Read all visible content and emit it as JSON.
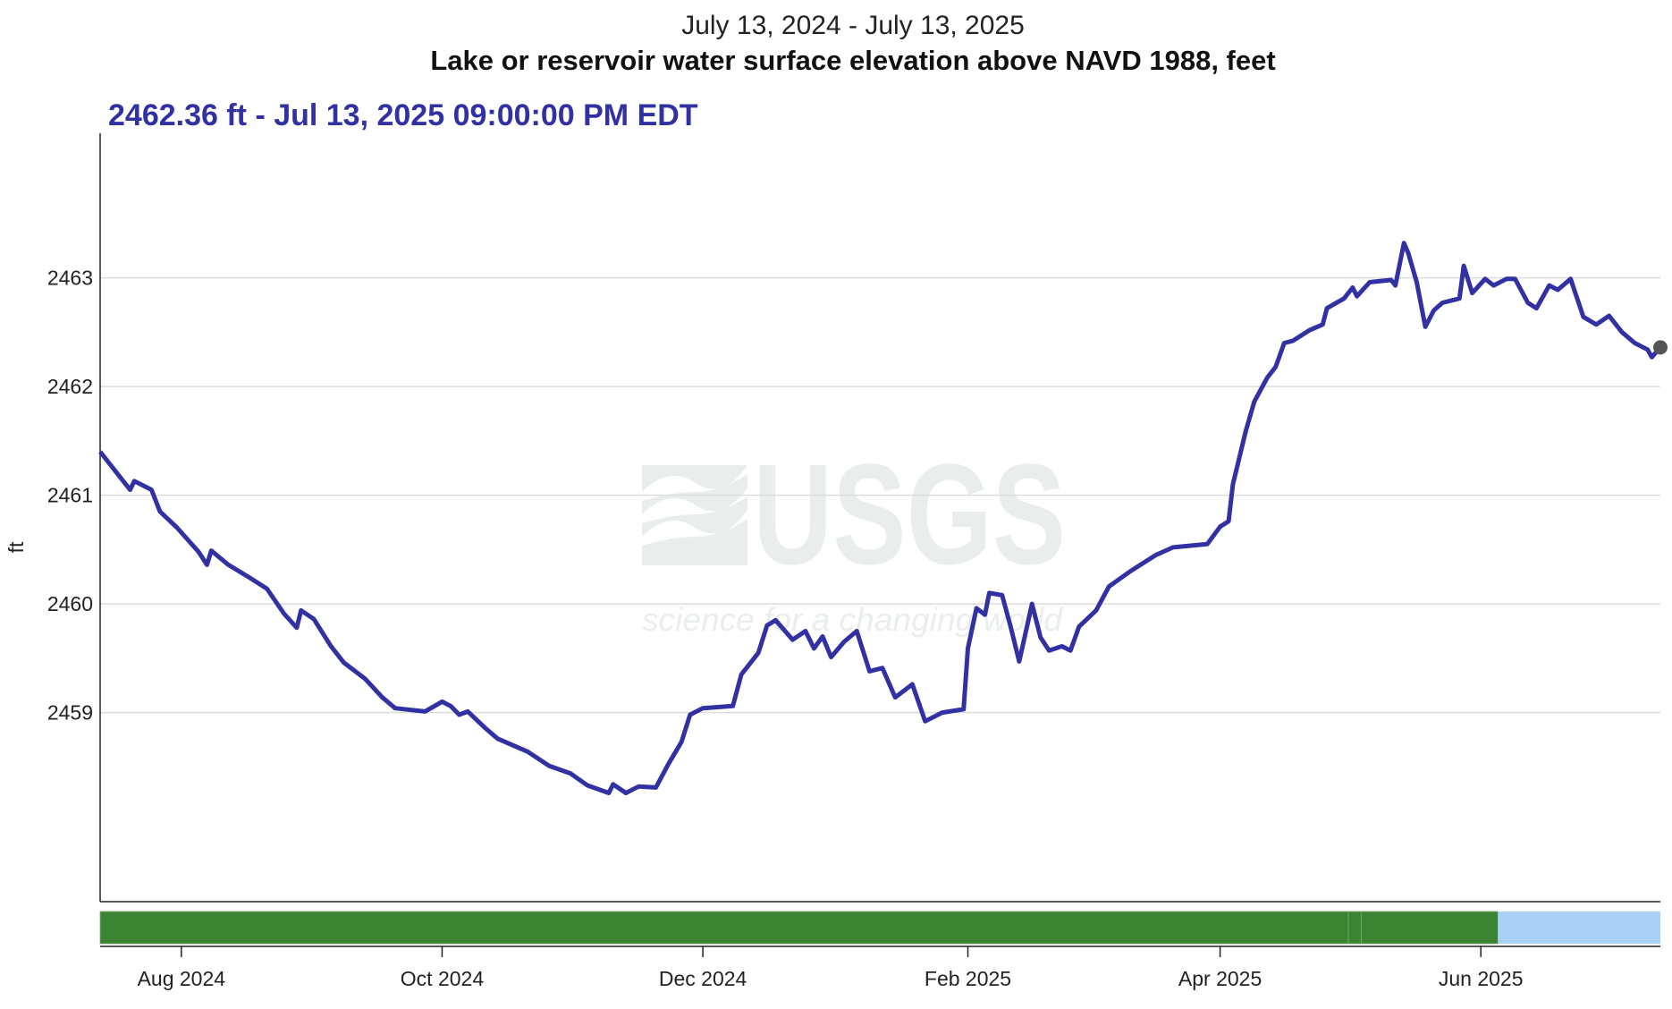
{
  "chart_data": {
    "type": "line",
    "title": "July 13, 2024 - July 13, 2025",
    "subtitle": "Lake or reservoir water surface elevation above NAVD 1988, feet",
    "headline": "2462.36 ft - Jul 13, 2025 09:00:00 PM EDT",
    "ylabel": "ft",
    "xlabel": "",
    "xlim": [
      "2024-07-13",
      "2025-07-13"
    ],
    "ylim": [
      2457.26,
      2464.33
    ],
    "grid": true,
    "line_color": "#3131a3",
    "marker_color": "#555555",
    "y_ticks": [
      2459,
      2460,
      2461,
      2462,
      2463
    ],
    "x_ticks": [
      {
        "date": "2024-08-01",
        "label": "Aug 2024"
      },
      {
        "date": "2024-10-01",
        "label": "Oct 2024"
      },
      {
        "date": "2024-12-01",
        "label": "Dec 2024"
      },
      {
        "date": "2025-02-01",
        "label": "Feb 2025"
      },
      {
        "date": "2025-04-01",
        "label": "Apr 2025"
      },
      {
        "date": "2025-06-01",
        "label": "Jun 2025"
      }
    ],
    "series": [
      {
        "x": [
          "2024-07-13",
          "2024-07-16",
          "2024-07-20",
          "2024-07-21",
          "2024-07-25",
          "2024-07-27",
          "2024-07-31",
          "2024-08-05",
          "2024-08-07",
          "2024-08-08",
          "2024-08-12",
          "2024-08-17",
          "2024-08-21",
          "2024-08-25",
          "2024-08-28",
          "2024-08-29",
          "2024-09-01",
          "2024-09-05",
          "2024-09-08",
          "2024-09-13",
          "2024-09-17",
          "2024-09-20",
          "2024-09-27",
          "2024-10-01",
          "2024-10-03",
          "2024-10-05",
          "2024-10-07",
          "2024-10-11",
          "2024-10-14",
          "2024-10-21",
          "2024-10-26",
          "2024-10-31",
          "2024-11-04",
          "2024-11-09",
          "2024-11-10",
          "2024-11-13",
          "2024-11-16",
          "2024-11-20",
          "2024-11-23",
          "2024-11-26",
          "2024-11-28",
          "2024-12-01",
          "2024-12-08",
          "2024-12-10",
          "2024-12-14",
          "2024-12-16",
          "2024-12-18",
          "2024-12-22",
          "2024-12-25",
          "2024-12-27",
          "2024-12-29",
          "2024-12-31",
          "2025-01-03",
          "2025-01-06",
          "2025-01-09",
          "2025-01-12",
          "2025-01-15",
          "2025-01-19",
          "2025-01-22",
          "2025-01-26",
          "2025-01-31",
          "2025-02-01",
          "2025-02-03",
          "2025-02-05",
          "2025-02-06",
          "2025-02-09",
          "2025-02-11",
          "2025-02-13",
          "2025-02-16",
          "2025-02-18",
          "2025-02-20",
          "2025-02-23",
          "2025-02-25",
          "2025-02-27",
          "2025-03-03",
          "2025-03-06",
          "2025-03-11",
          "2025-03-17",
          "2025-03-21",
          "2025-03-29",
          "2025-04-01",
          "2025-04-03",
          "2025-04-04",
          "2025-04-07",
          "2025-04-09",
          "2025-04-12",
          "2025-04-14",
          "2025-04-16",
          "2025-04-18",
          "2025-04-22",
          "2025-04-25",
          "2025-04-26",
          "2025-04-30",
          "2025-05-02",
          "2025-05-03",
          "2025-05-06",
          "2025-05-11",
          "2025-05-12",
          "2025-05-14",
          "2025-05-15",
          "2025-05-17",
          "2025-05-19",
          "2025-05-21",
          "2025-05-23",
          "2025-05-27",
          "2025-05-28",
          "2025-05-30",
          "2025-06-02",
          "2025-06-04",
          "2025-06-07",
          "2025-06-09",
          "2025-06-12",
          "2025-06-14",
          "2025-06-17",
          "2025-06-19",
          "2025-06-22",
          "2025-06-25",
          "2025-06-28",
          "2025-07-01",
          "2025-07-04",
          "2025-07-07",
          "2025-07-10",
          "2025-07-11",
          "2025-07-13"
        ],
        "y": [
          2461.4,
          2461.25,
          2461.05,
          2461.13,
          2461.05,
          2460.85,
          2460.7,
          2460.48,
          2460.36,
          2460.49,
          2460.36,
          2460.24,
          2460.14,
          2459.91,
          2459.78,
          2459.94,
          2459.86,
          2459.61,
          2459.46,
          2459.31,
          2459.14,
          2459.04,
          2459.01,
          2459.1,
          2459.06,
          2458.98,
          2459.01,
          2458.86,
          2458.76,
          2458.64,
          2458.51,
          2458.44,
          2458.33,
          2458.26,
          2458.34,
          2458.26,
          2458.32,
          2458.31,
          2458.53,
          2458.73,
          2458.98,
          2459.04,
          2459.06,
          2459.35,
          2459.55,
          2459.8,
          2459.85,
          2459.67,
          2459.75,
          2459.59,
          2459.7,
          2459.51,
          2459.65,
          2459.75,
          2459.38,
          2459.41,
          2459.14,
          2459.26,
          2458.92,
          2459.0,
          2459.03,
          2459.59,
          2459.96,
          2459.9,
          2460.1,
          2460.08,
          2459.79,
          2459.47,
          2460.0,
          2459.69,
          2459.57,
          2459.61,
          2459.57,
          2459.79,
          2459.94,
          2460.16,
          2460.3,
          2460.45,
          2460.52,
          2460.55,
          2460.71,
          2460.76,
          2461.1,
          2461.59,
          2461.86,
          2462.08,
          2462.18,
          2462.4,
          2462.42,
          2462.52,
          2462.57,
          2462.72,
          2462.81,
          2462.91,
          2462.83,
          2462.96,
          2462.98,
          2462.93,
          2463.32,
          2463.23,
          2462.96,
          2462.55,
          2462.7,
          2462.77,
          2462.81,
          2463.11,
          2462.86,
          2462.99,
          2462.93,
          2462.99,
          2462.99,
          2462.77,
          2462.72,
          2462.93,
          2462.89,
          2462.99,
          2462.64,
          2462.57,
          2462.65,
          2462.5,
          2462.4,
          2462.34,
          2462.27,
          2462.36
        ]
      }
    ],
    "status_bar": [
      {
        "start": "2024-07-13",
        "end": "2025-05-01",
        "color": "#3b8431"
      },
      {
        "start": "2025-05-01",
        "end": "2025-05-04",
        "color": "#3b8431"
      },
      {
        "start": "2025-05-04",
        "end": "2025-06-05",
        "color": "#3b8431"
      },
      {
        "start": "2025-06-05",
        "end": "2025-07-13",
        "color": "#abd0f8"
      }
    ],
    "watermark": {
      "logo": "USGS",
      "tagline": "science for a changing world",
      "color": "#e9eeec"
    }
  }
}
